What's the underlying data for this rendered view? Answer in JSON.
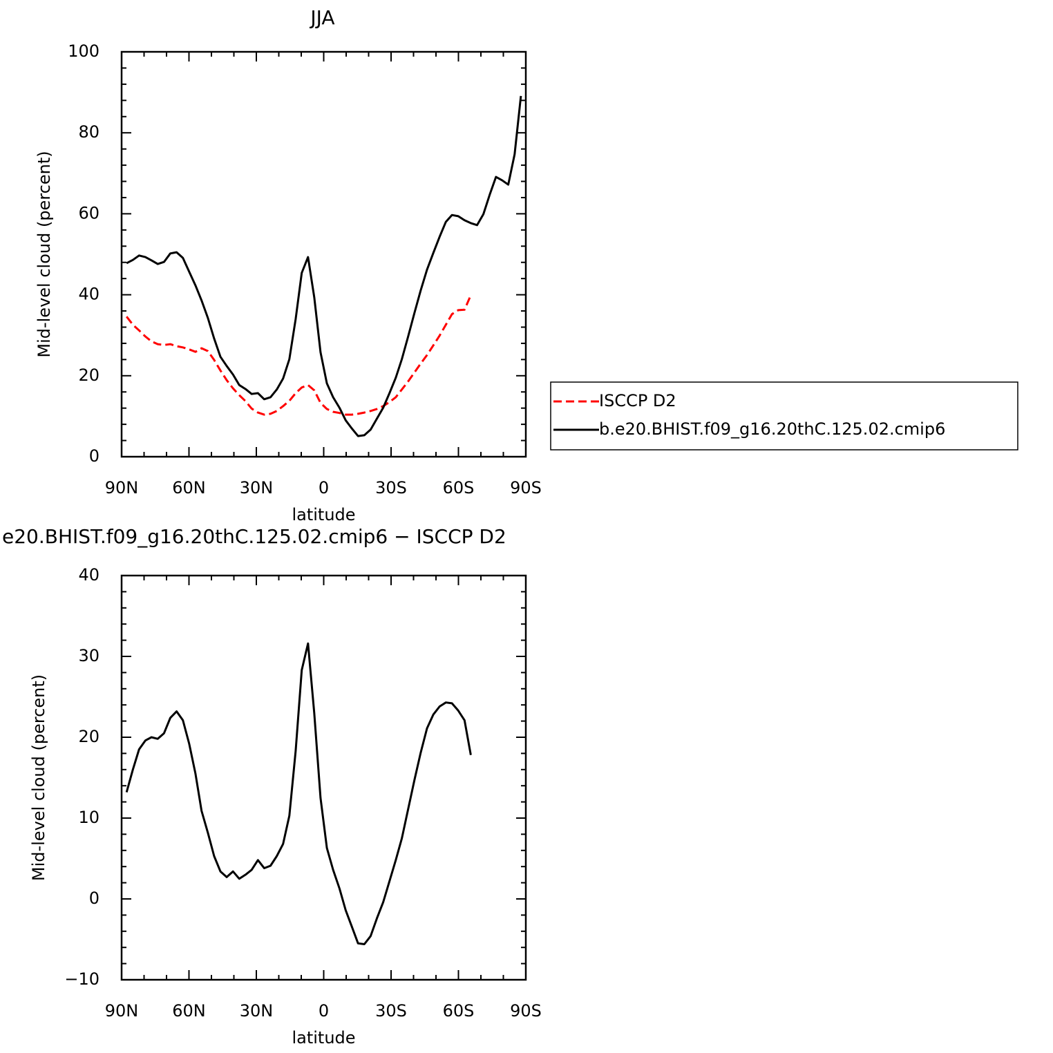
{
  "chart_data": [
    {
      "type": "line",
      "title": "JJA",
      "xlabel": "latitude",
      "ylabel": "Mid-level cloud (percent)",
      "x": [
        87.8,
        85.0,
        82.2,
        79.4,
        76.7,
        73.9,
        71.1,
        68.3,
        65.5,
        62.7,
        59.9,
        57.1,
        54.4,
        51.6,
        48.8,
        46.0,
        43.2,
        40.4,
        37.6,
        34.8,
        32.1,
        29.3,
        26.5,
        23.7,
        20.9,
        18.1,
        15.3,
        12.5,
        9.8,
        7.0,
        4.2,
        1.4,
        -1.4,
        -4.2,
        -7.0,
        -9.8,
        -12.5,
        -15.3,
        -18.1,
        -20.9,
        -23.7,
        -26.5,
        -29.3,
        -32.1,
        -34.8,
        -37.6,
        -40.4,
        -43.2,
        -46.0,
        -48.8,
        -51.6,
        -54.4,
        -57.1,
        -59.9,
        -62.7,
        -65.5,
        -68.3,
        -71.1,
        -73.9,
        -76.7,
        -79.4,
        -82.2,
        -85.0,
        -87.8
      ],
      "series": [
        {
          "name": "ISCCP D2",
          "color": "#ff0000",
          "dash": true,
          "values": [
            34.6,
            32.6,
            31.2,
            29.7,
            28.5,
            27.8,
            27.6,
            27.8,
            27.3,
            27.0,
            26.5,
            25.9,
            26.8,
            26.1,
            23.9,
            21.3,
            18.9,
            16.9,
            15.2,
            13.7,
            11.9,
            10.9,
            10.4,
            10.6,
            11.3,
            12.5,
            13.8,
            15.7,
            17.1,
            17.7,
            16.4,
            13.3,
            11.8,
            11.1,
            10.8,
            10.4,
            10.4,
            10.6,
            10.9,
            11.3,
            11.8,
            12.5,
            13.5,
            14.7,
            16.6,
            18.6,
            20.8,
            23.0,
            25.1,
            27.5,
            29.9,
            32.6,
            35.2,
            36.2,
            36.3,
            39.9,
            null,
            null,
            null,
            null,
            null,
            null,
            null,
            null
          ]
        },
        {
          "name": "b.e20.BHIST.f09_g16.20thC.125.02.cmip6",
          "color": "#000000",
          "dash": false,
          "values": [
            47.8,
            48.6,
            49.7,
            49.3,
            48.5,
            47.6,
            48.1,
            50.2,
            50.5,
            49.1,
            45.7,
            42.3,
            38.6,
            34.3,
            29.2,
            24.7,
            22.4,
            20.3,
            17.7,
            16.7,
            15.5,
            15.7,
            14.2,
            14.7,
            16.6,
            19.3,
            24.1,
            34.0,
            45.4,
            49.3,
            39.4,
            25.8,
            18.1,
            14.7,
            12.1,
            9.0,
            7.0,
            5.1,
            5.3,
            6.7,
            9.4,
            12.1,
            15.7,
            19.5,
            24.1,
            29.7,
            35.5,
            41.1,
            46.2,
            50.3,
            54.3,
            58.0,
            59.7,
            59.4,
            58.4,
            57.7,
            57.2,
            59.9,
            64.7,
            69.1,
            68.3,
            67.2,
            74.7,
            89.1
          ]
        }
      ],
      "xlim": [
        90,
        -90
      ],
      "xticks": [
        {
          "value": 90,
          "label": "90N"
        },
        {
          "value": 60,
          "label": "60N"
        },
        {
          "value": 30,
          "label": "30N"
        },
        0,
        {
          "value": -30,
          "label": "30S"
        },
        {
          "value": -60,
          "label": "60S"
        },
        {
          "value": -90,
          "label": "90S"
        }
      ],
      "xminorticks": [
        80,
        70,
        50,
        40,
        20,
        10,
        -10,
        -20,
        -40,
        -50,
        -70,
        -80
      ],
      "ylim": [
        0,
        100
      ],
      "yticks": [
        0,
        20,
        40,
        60,
        80,
        100
      ],
      "yminorticks": [
        4,
        8,
        12,
        16,
        24,
        28,
        32,
        36,
        44,
        48,
        52,
        56,
        64,
        68,
        72,
        76,
        84,
        88,
        92,
        96
      ],
      "legend": "right"
    },
    {
      "type": "line",
      "title": "e20.BHIST.f09_g16.20thC.125.02.cmip6 − ISCCP D2",
      "xlabel": "latitude",
      "ylabel": "Mid-level cloud (percent)",
      "x": [
        87.8,
        85.0,
        82.2,
        79.4,
        76.7,
        73.9,
        71.1,
        68.3,
        65.5,
        62.7,
        59.9,
        57.1,
        54.4,
        51.6,
        48.8,
        46.0,
        43.2,
        40.4,
        37.6,
        34.8,
        32.1,
        29.3,
        26.5,
        23.7,
        20.9,
        18.1,
        15.3,
        12.5,
        9.8,
        7.0,
        4.2,
        1.4,
        -1.4,
        -4.2,
        -7.0,
        -9.8,
        -12.5,
        -15.3,
        -18.1,
        -20.9,
        -23.7,
        -26.5,
        -29.3,
        -32.1,
        -34.8,
        -37.6,
        -40.4,
        -43.2,
        -46.0,
        -48.8,
        -51.6,
        -54.4,
        -57.1,
        -59.9,
        -62.7,
        -65.5
      ],
      "series": [
        {
          "color": "#000000",
          "dash": false,
          "values": [
            13.2,
            16.0,
            18.5,
            19.6,
            20.0,
            19.8,
            20.5,
            22.4,
            23.2,
            22.1,
            19.2,
            15.5,
            10.9,
            8.2,
            5.3,
            3.4,
            2.7,
            3.4,
            2.5,
            3.0,
            3.6,
            4.8,
            3.8,
            4.1,
            5.3,
            6.8,
            10.3,
            18.3,
            28.3,
            31.6,
            23.0,
            12.5,
            6.3,
            3.6,
            1.3,
            -1.4,
            -3.4,
            -5.5,
            -5.6,
            -4.6,
            -2.4,
            -0.4,
            2.2,
            4.8,
            7.5,
            11.1,
            14.7,
            18.1,
            21.1,
            22.8,
            23.8,
            24.3,
            24.2,
            23.3,
            22.1,
            17.8
          ]
        }
      ],
      "xlim": [
        90,
        -90
      ],
      "xticks": [
        {
          "value": 90,
          "label": "90N"
        },
        {
          "value": 60,
          "label": "60N"
        },
        {
          "value": 30,
          "label": "30N"
        },
        0,
        {
          "value": -30,
          "label": "30S"
        },
        {
          "value": -60,
          "label": "60S"
        },
        {
          "value": -90,
          "label": "90S"
        }
      ],
      "xminorticks": [
        80,
        70,
        50,
        40,
        20,
        10,
        -10,
        -20,
        -40,
        -50,
        -70,
        -80
      ],
      "ylim": [
        -10,
        40
      ],
      "yticks": [
        {
          "value": -10,
          "label": "−10"
        },
        0,
        10,
        20,
        30,
        40
      ],
      "yminorticks": [
        -8,
        -6,
        -4,
        -2,
        2,
        4,
        6,
        8,
        12,
        14,
        16,
        18,
        22,
        24,
        26,
        28,
        32,
        34,
        36,
        38
      ]
    }
  ]
}
